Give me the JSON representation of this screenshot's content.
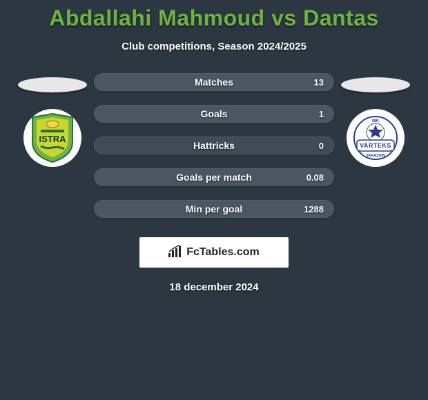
{
  "title": "Abdallahi Mahmoud vs Dantas",
  "subtitle": "Club competitions, Season 2024/2025",
  "date": "18 december 2024",
  "brand": "FcTables.com",
  "colors": {
    "background": "#2c3742",
    "title": "#6db33f",
    "bar_bg": "#3f4b57",
    "bar_fill": "#4b5664",
    "bar_border": "#555f6a",
    "text": "#ffffff",
    "brand_bg": "#ffffff",
    "brand_text": "#222222"
  },
  "left_logo": {
    "shield_fill": "#6db33f",
    "inner_fill": "#c8d632",
    "text": "ISTRA",
    "text_color": "#0a3a1e",
    "stripe": "#2a6e3e"
  },
  "right_logo": {
    "ball_color": "#2d3b8f",
    "ring_color": "#2d3b8f",
    "banner_fill": "#ffffff",
    "banner_border": "#2d3b8f",
    "top_text": "NK",
    "mid_text": "VARTEKS",
    "bottom_text": "VARAZDIN"
  },
  "stats": [
    {
      "label": "Matches",
      "value_right": "13",
      "fill_pct": 100
    },
    {
      "label": "Goals",
      "value_right": "1",
      "fill_pct": 100
    },
    {
      "label": "Hattricks",
      "value_right": "0",
      "fill_pct": 0
    },
    {
      "label": "Goals per match",
      "value_right": "0.08",
      "fill_pct": 100
    },
    {
      "label": "Min per goal",
      "value_right": "1288",
      "fill_pct": 100
    }
  ]
}
